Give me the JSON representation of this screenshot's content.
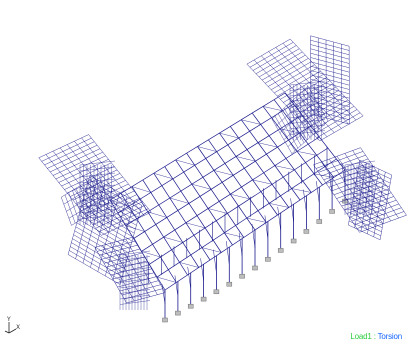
{
  "viewport": {
    "background": "#ffffff",
    "model_color": "#1a1a8c",
    "support_color": "#6e6e6e"
  },
  "axes": {
    "y_label": "Y",
    "x_label": "X",
    "z_label": "Z"
  },
  "status": {
    "load_label": "Load1 :",
    "load_name": "Torsion",
    "load_label_color": "#2ecc40",
    "load_name_color": "#1565ff"
  }
}
